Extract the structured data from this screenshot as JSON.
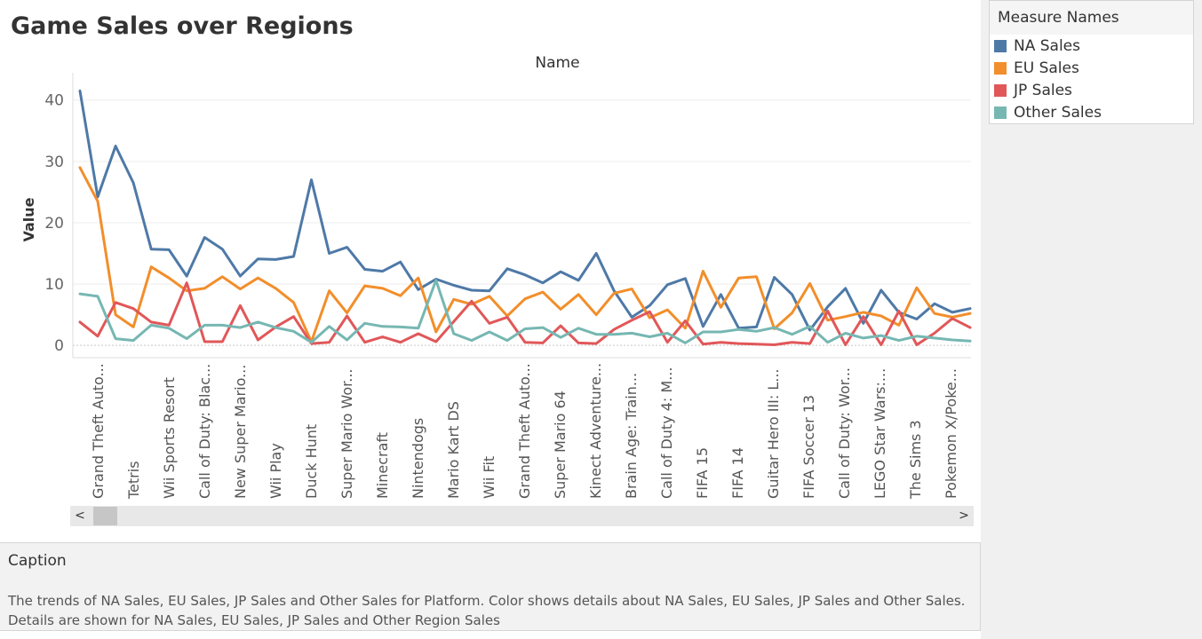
{
  "title": "Game Sales over Regions",
  "legend": {
    "title": "Measure Names",
    "items": [
      {
        "label": "NA Sales",
        "color": "#4e79a7"
      },
      {
        "label": "EU Sales",
        "color": "#f28e2b"
      },
      {
        "label": "JP Sales",
        "color": "#e15759"
      },
      {
        "label": "Other Sales",
        "color": "#76b7b2"
      }
    ]
  },
  "scrollbar": {
    "left_icon": "chevron-left-icon",
    "right_icon": "chevron-right-icon",
    "left_glyph": "<",
    "right_glyph": ">"
  },
  "caption": {
    "title": "Caption",
    "text": "The trends of NA Sales, EU Sales, JP Sales and Other Sales for Platform.  Color shows details about NA Sales, EU Sales, JP Sales and Other Sales. Details are shown for NA Sales, EU Sales, JP Sales and Other Region Sales"
  },
  "chart_data": {
    "type": "line",
    "title": "Name",
    "xlabel": "",
    "ylabel": "Value",
    "ylim": [
      -2,
      43
    ],
    "yticks": [
      0,
      10,
      20,
      30,
      40
    ],
    "grid": true,
    "legend_position": "right",
    "tick_labels": [
      "Grand Theft Auto...",
      "Tetris",
      "Wii Sports Resort",
      "Call of Duty: Blac...",
      "New Super Mario...",
      "Wii Play",
      "Duck Hunt",
      "Super Mario Wor...",
      "Minecraft",
      "Nintendogs",
      "Mario Kart DS",
      "Wii Fit",
      "Grand Theft Auto...",
      "Super Mario 64",
      "Kinect Adventure...",
      "Brain Age: Train...",
      "Call of Duty 4: M...",
      "FIFA 15",
      "FIFA 14",
      "Guitar Hero III: L...",
      "FIFA Soccer 13",
      "Call of Duty: Wor...",
      "LEGO Star Wars:...",
      "The Sims 3",
      "Pokemon X/Poke..."
    ],
    "series": [
      {
        "name": "NA Sales",
        "color": "#4e79a7",
        "values": [
          41.5,
          24.2,
          32.5,
          26.5,
          15.7,
          15.6,
          11.3,
          17.6,
          15.7,
          11.3,
          14.1,
          14.0,
          14.5,
          27.0,
          15.0,
          16.0,
          12.4,
          12.1,
          13.6,
          9.1,
          10.8,
          9.8,
          9.0,
          8.9,
          12.5,
          11.5,
          10.2,
          12.0,
          10.6,
          15.0,
          8.9,
          4.6,
          6.5,
          9.9,
          10.9,
          3.1,
          8.3,
          2.8,
          3.0,
          11.1,
          8.3,
          2.5,
          6.3,
          9.3,
          3.6,
          9.0,
          5.4,
          4.3,
          6.8,
          5.4,
          6.0
        ]
      },
      {
        "name": "EU Sales",
        "color": "#f28e2b",
        "values": [
          29.0,
          23.5,
          5.0,
          3.0,
          12.8,
          11.0,
          8.9,
          9.3,
          11.2,
          9.2,
          11.0,
          9.3,
          7.0,
          0.6,
          8.9,
          5.3,
          9.7,
          9.3,
          8.1,
          11.0,
          2.2,
          7.5,
          6.7,
          8.0,
          4.8,
          7.6,
          8.7,
          5.9,
          8.3,
          5.0,
          8.5,
          9.2,
          4.5,
          5.8,
          2.8,
          12.1,
          6.2,
          11.0,
          11.2,
          2.7,
          5.3,
          10.1,
          4.1,
          4.7,
          5.4,
          4.8,
          3.3,
          9.4,
          5.2,
          4.6,
          5.2
        ]
      },
      {
        "name": "JP Sales",
        "color": "#e15759",
        "values": [
          3.8,
          1.5,
          7.0,
          6.0,
          3.8,
          3.3,
          10.2,
          0.6,
          0.6,
          6.5,
          0.9,
          3.0,
          4.7,
          0.3,
          0.5,
          4.8,
          0.5,
          1.4,
          0.5,
          1.9,
          0.6,
          3.9,
          7.2,
          3.6,
          4.6,
          0.5,
          0.4,
          3.2,
          0.4,
          0.3,
          2.6,
          4.1,
          5.5,
          0.5,
          4.0,
          0.2,
          0.5,
          0.3,
          0.2,
          0.1,
          0.5,
          0.3,
          5.6,
          0.1,
          4.7,
          0.1,
          5.6,
          0.1,
          2.0,
          4.4,
          2.9
        ]
      },
      {
        "name": "Other Sales",
        "color": "#76b7b2",
        "values": [
          8.4,
          8.0,
          1.1,
          0.8,
          3.3,
          2.8,
          1.1,
          3.3,
          3.3,
          2.9,
          3.8,
          2.9,
          2.3,
          0.5,
          3.1,
          0.9,
          3.6,
          3.1,
          3.0,
          2.8,
          10.6,
          1.9,
          0.8,
          2.2,
          0.8,
          2.7,
          2.9,
          1.3,
          2.8,
          1.8,
          1.8,
          2.0,
          1.4,
          2.0,
          0.4,
          2.2,
          2.2,
          2.6,
          2.3,
          2.9,
          1.8,
          3.1,
          0.5,
          2.0,
          1.2,
          1.6,
          0.8,
          1.5,
          1.2,
          0.9,
          0.7
        ]
      }
    ]
  }
}
